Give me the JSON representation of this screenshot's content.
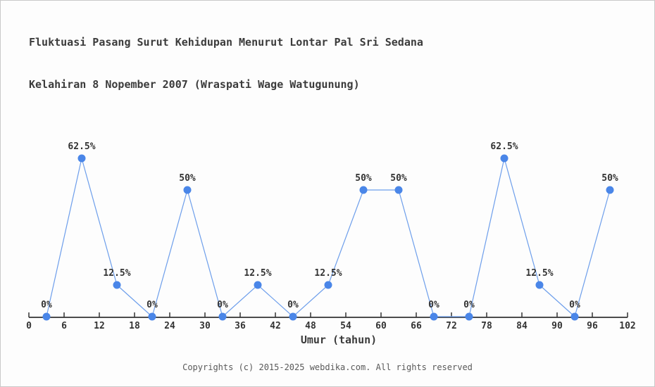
{
  "title": {
    "line1": "Fluktuasi Pasang Surut Kehidupan Menurut Lontar Pal Sri Sedana",
    "line2": "Kelahiran 8 Nopember 2007 (Wraspati Wage Watugunung)"
  },
  "chart_data": {
    "type": "line",
    "x": [
      3,
      9,
      15,
      21,
      27,
      33,
      39,
      45,
      51,
      57,
      63,
      69,
      75,
      81,
      87,
      93,
      99
    ],
    "values": [
      0,
      62.5,
      12.5,
      0,
      50,
      0,
      12.5,
      0,
      12.5,
      50,
      50,
      0,
      0,
      62.5,
      12.5,
      0,
      50
    ],
    "point_labels": [
      "0%",
      "62.5%",
      "12.5%",
      "0%",
      "50%",
      "0%",
      "12.5%",
      "0%",
      "12.5%",
      "50%",
      "50%",
      "0%",
      "0%",
      "62.5%",
      "12.5%",
      "0%",
      "50%"
    ],
    "x_ticks": [
      0,
      6,
      12,
      18,
      24,
      30,
      36,
      42,
      48,
      54,
      60,
      66,
      72,
      78,
      84,
      90,
      96,
      102
    ],
    "xlim": [
      0,
      102
    ],
    "ylim": [
      0,
      100
    ],
    "xlabel": "Umur (tahun)",
    "grid": false,
    "legend": "none",
    "colors": {
      "line": "#6d9eeb",
      "marker": "#4a86e8",
      "axis": "#333333",
      "tick_text": "#333333",
      "label_text": "#333333",
      "background": "#fdfdfd"
    }
  },
  "footer": {
    "copyright": "Copyrights (c) 2015-2025 webdika.com. All rights reserved"
  }
}
